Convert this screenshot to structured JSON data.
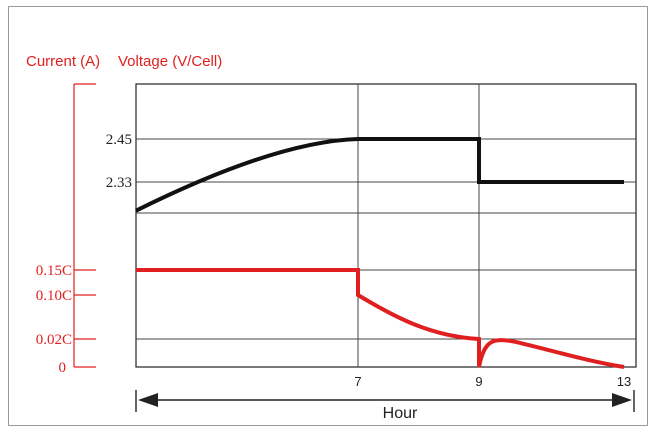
{
  "chart_data": {
    "type": "line",
    "current_axis_label": "Current (A)",
    "voltage_axis_label": "Voltage (V/Cell)",
    "xlabel": "Hour",
    "x_ticks": [
      "7",
      "9",
      "13"
    ],
    "voltage_ticks": [
      "2.45",
      "2.33"
    ],
    "current_ticks": [
      "0.15C",
      "0.10C",
      "0.02C",
      "0"
    ],
    "series": [
      {
        "color": "#111111",
        "points": [
          [
            0,
            2.25
          ],
          [
            3,
            2.4
          ],
          [
            5,
            2.44
          ],
          [
            7,
            2.45
          ],
          [
            9,
            2.45
          ],
          [
            9,
            2.33
          ],
          [
            13,
            2.33
          ]
        ]
      },
      {
        "color": "#e02020",
        "points": [
          [
            0,
            0.15
          ],
          [
            7,
            0.15
          ],
          [
            7,
            0.1
          ],
          [
            8,
            0.04
          ],
          [
            9,
            0.02
          ],
          [
            9,
            0.0
          ],
          [
            10,
            0.02
          ],
          [
            13,
            0.0
          ]
        ]
      }
    ],
    "grid": true
  }
}
